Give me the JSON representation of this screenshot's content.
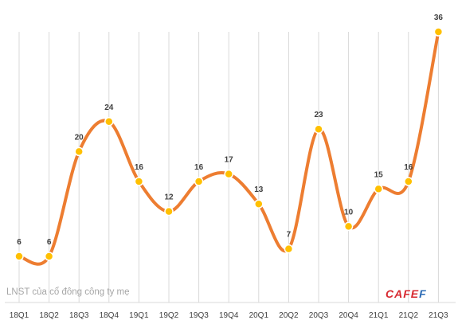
{
  "chart_data": {
    "type": "line",
    "categories": [
      "18Q1",
      "18Q2",
      "18Q3",
      "18Q4",
      "19Q1",
      "19Q2",
      "19Q3",
      "19Q4",
      "20Q1",
      "20Q2",
      "20Q3",
      "20Q4",
      "21Q1",
      "21Q2",
      "21Q3"
    ],
    "values": [
      6,
      6,
      20,
      24,
      16,
      12,
      16,
      17,
      13,
      7,
      23,
      10,
      15,
      16,
      36
    ],
    "smooth": true,
    "ylim": [
      0,
      40
    ],
    "grid": "vertical",
    "data_labels": true,
    "title": "",
    "xlabel": "",
    "ylabel": "",
    "line_color": "#ED7D31",
    "marker_color": "#FFC000"
  },
  "note": "LNST của cổ đông công ty mẹ",
  "logo": {
    "part1": "CAFE",
    "part2": "F"
  }
}
